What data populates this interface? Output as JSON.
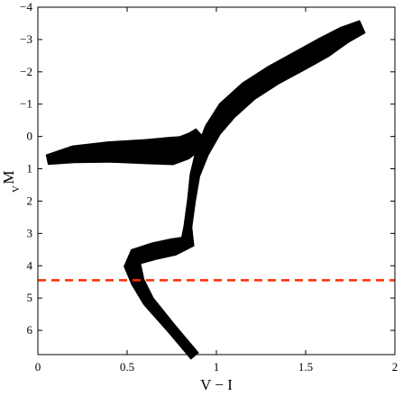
{
  "chart_data": {
    "type": "scatter",
    "title": "",
    "xlabel": "V − I",
    "ylabel": {
      "main": "M",
      "subscript": "V"
    },
    "xlim": [
      0,
      2
    ],
    "ylim": [
      6.75,
      -4
    ],
    "y_inverted": true,
    "grid": false,
    "xticks": [
      {
        "value": 0,
        "label": "0"
      },
      {
        "value": 0.5,
        "label": "0.5"
      },
      {
        "value": 1,
        "label": "1"
      },
      {
        "value": 1.5,
        "label": "1.5"
      },
      {
        "value": 2,
        "label": "2"
      }
    ],
    "yticks": [
      {
        "value": -4,
        "label": "−4"
      },
      {
        "value": -3,
        "label": "−3"
      },
      {
        "value": -2,
        "label": "−2"
      },
      {
        "value": -1,
        "label": "−1"
      },
      {
        "value": 0,
        "label": "0"
      },
      {
        "value": 1,
        "label": "1"
      },
      {
        "value": 2,
        "label": "2"
      },
      {
        "value": 3,
        "label": "3"
      },
      {
        "value": 4,
        "label": "4"
      },
      {
        "value": 5,
        "label": "5"
      },
      {
        "value": 6,
        "label": "6"
      }
    ],
    "series": [
      {
        "kind": "isochrone-band",
        "color": "#000000",
        "centerline": [
          {
            "x": 0.88,
            "y": 6.8
          },
          {
            "x": 0.75,
            "y": 5.95
          },
          {
            "x": 0.62,
            "y": 5.1
          },
          {
            "x": 0.56,
            "y": 4.5
          },
          {
            "x": 0.53,
            "y": 4.0
          },
          {
            "x": 0.55,
            "y": 3.72
          },
          {
            "x": 0.65,
            "y": 3.55
          },
          {
            "x": 0.76,
            "y": 3.42
          },
          {
            "x": 0.84,
            "y": 3.25
          },
          {
            "x": 0.84,
            "y": 2.8
          },
          {
            "x": 0.86,
            "y": 2.0
          },
          {
            "x": 0.88,
            "y": 1.2
          },
          {
            "x": 0.92,
            "y": 0.5
          },
          {
            "x": 0.98,
            "y": -0.2
          },
          {
            "x": 1.06,
            "y": -0.8
          },
          {
            "x": 1.18,
            "y": -1.4
          },
          {
            "x": 1.32,
            "y": -1.9
          },
          {
            "x": 1.47,
            "y": -2.35
          },
          {
            "x": 1.6,
            "y": -2.75
          },
          {
            "x": 1.72,
            "y": -3.15
          },
          {
            "x": 1.82,
            "y": -3.4
          }
        ],
        "halfwidth": [
          0.03,
          0.03,
          0.035,
          0.04,
          0.05,
          0.05,
          0.05,
          0.05,
          0.045,
          0.025,
          0.025,
          0.03,
          0.04,
          0.05,
          0.06,
          0.06,
          0.06,
          0.06,
          0.06,
          0.05,
          0.04
        ]
      },
      {
        "kind": "horizontal-branch",
        "color": "#000000",
        "centerline": [
          {
            "x": 0.05,
            "y": 0.72
          },
          {
            "x": 0.2,
            "y": 0.55
          },
          {
            "x": 0.4,
            "y": 0.48
          },
          {
            "x": 0.6,
            "y": 0.47
          },
          {
            "x": 0.75,
            "y": 0.45
          },
          {
            "x": 0.82,
            "y": 0.35
          },
          {
            "x": 0.88,
            "y": 0.15
          },
          {
            "x": 0.92,
            "y": -0.05
          }
        ],
        "halfwidth": [
          0.03,
          0.05,
          0.06,
          0.07,
          0.08,
          0.07,
          0.06,
          0.05
        ]
      }
    ],
    "reference_lines": [
      {
        "orientation": "horizontal",
        "y": 4.45,
        "color": "#ff2a00",
        "style": "dashed"
      }
    ]
  }
}
